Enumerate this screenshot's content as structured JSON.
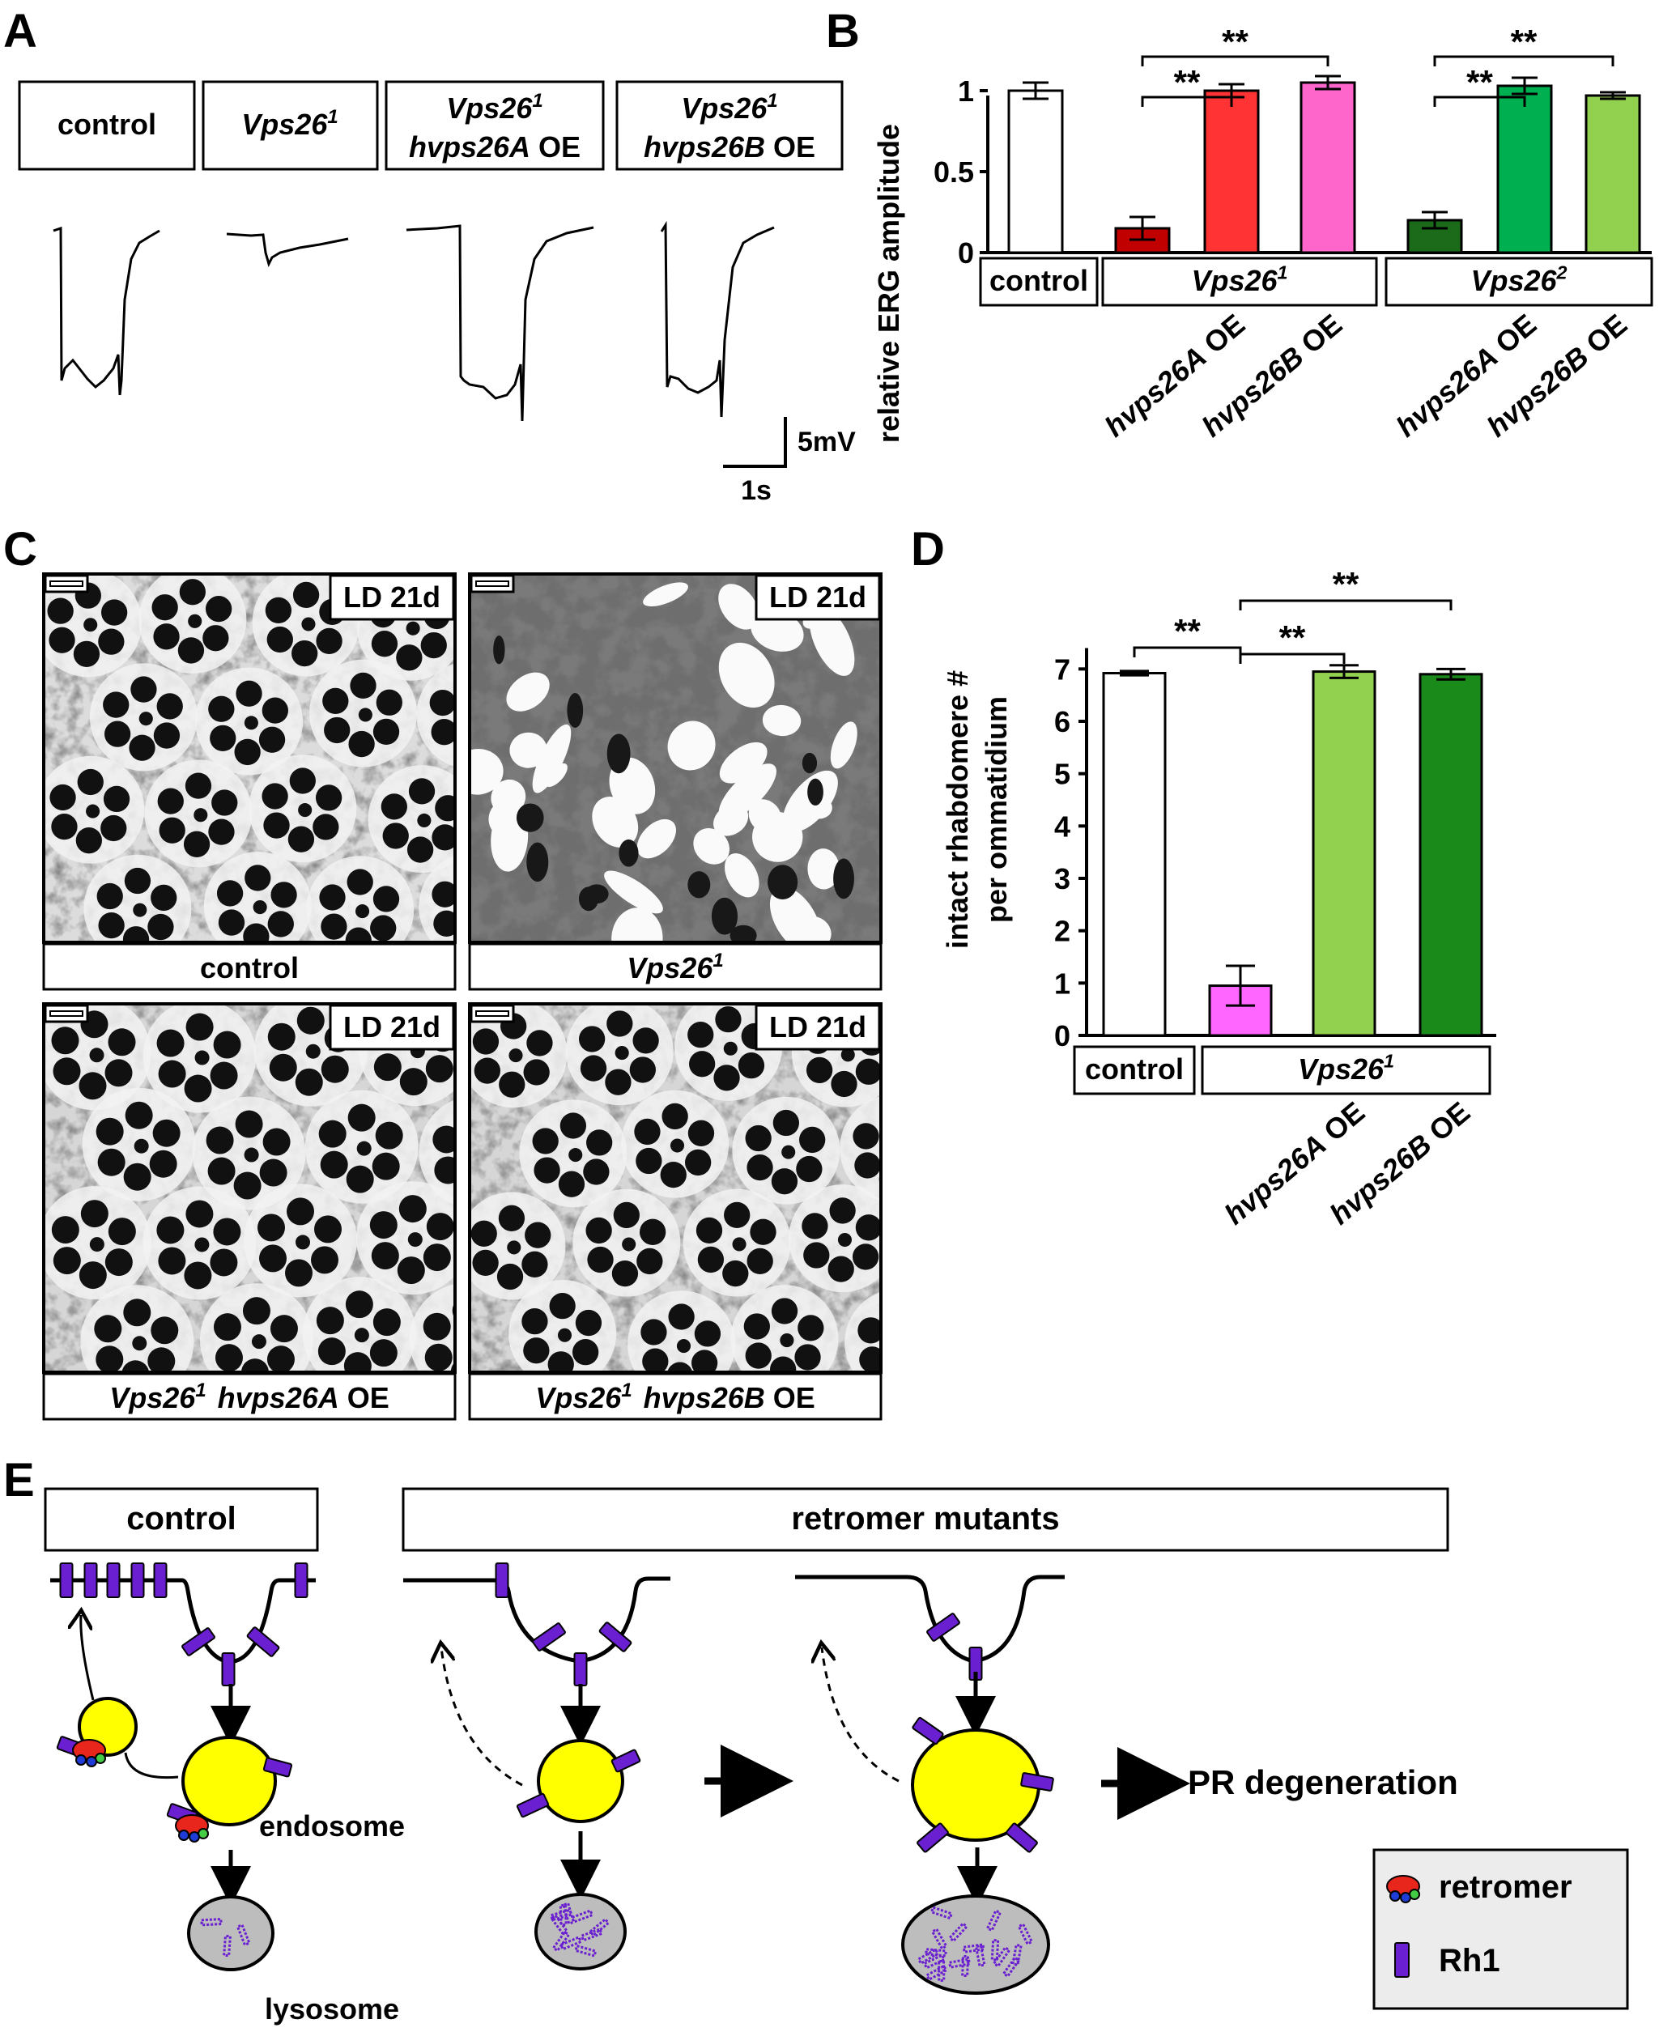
{
  "panels": {
    "A": "A",
    "B": "B",
    "C": "C",
    "D": "D",
    "E": "E"
  },
  "panel_a": {
    "conditions": [
      {
        "name": "control"
      },
      {
        "name": "Vps26",
        "sup": "1"
      },
      {
        "name": "Vps26",
        "sup": "1",
        "line2_gene": "hvps26A",
        "line2_suffix": " OE"
      },
      {
        "name": "Vps26",
        "sup": "1",
        "line2_gene": "hvps26B",
        "line2_suffix": " OE"
      }
    ],
    "scale_voltage": "5mV",
    "scale_time": "1s"
  },
  "chart_data": [
    {
      "type": "bar",
      "panel": "B",
      "ylabel": "relative ERG amplitude",
      "ylim": [
        0,
        1.1
      ],
      "yticks": [
        "0",
        "0.5",
        "1"
      ],
      "categories": [
        "control",
        "Vps26¹",
        "Vps26¹ hvps26A OE",
        "Vps26¹ hvps26B OE",
        "Vps26²",
        "Vps26² hvps26A OE",
        "Vps26² hvps26B OE"
      ],
      "values": [
        1.0,
        0.15,
        1.0,
        1.05,
        0.2,
        1.03,
        0.97
      ],
      "errors": [
        0.05,
        0.07,
        0.04,
        0.04,
        0.05,
        0.05,
        0.02
      ],
      "colors": [
        "#ffffff",
        "#c00000",
        "#ff3333",
        "#ff66cc",
        "#1b6b1b",
        "#00b050",
        "#92d050"
      ],
      "group_labels": [
        {
          "text": "control"
        },
        {
          "text": "Vps26",
          "sup": "1"
        },
        {
          "text": "Vps26",
          "sup": "2"
        }
      ],
      "tick_labels": [
        {
          "gene": "hvps26A",
          "suffix": " OE"
        },
        {
          "gene": "hvps26B",
          "suffix": " OE"
        },
        {
          "gene": "hvps26A",
          "suffix": " OE"
        },
        {
          "gene": "hvps26B",
          "suffix": " OE"
        }
      ],
      "significance": [
        {
          "label": "**",
          "from": 1,
          "to": 2
        },
        {
          "label": "**",
          "from": 1,
          "to": 3
        },
        {
          "label": "**",
          "from": 4,
          "to": 5
        },
        {
          "label": "**",
          "from": 4,
          "to": 6
        }
      ]
    },
    {
      "type": "bar",
      "panel": "D",
      "ylabel_line1": "intact rhabdomere #",
      "ylabel_line2": "per ommatidium",
      "ylim": [
        0,
        7.5
      ],
      "yticks": [
        "0",
        "1",
        "2",
        "3",
        "4",
        "5",
        "6",
        "7"
      ],
      "categories": [
        "control",
        "Vps26¹",
        "Vps26¹ hvps26A OE",
        "Vps26¹ hvps26B OE"
      ],
      "values": [
        6.92,
        0.95,
        6.95,
        6.9
      ],
      "errors": [
        0.04,
        0.38,
        0.12,
        0.1
      ],
      "colors": [
        "#ffffff",
        "#ff66ff",
        "#92d050",
        "#1a8a1a"
      ],
      "group_labels": [
        {
          "text": "control"
        },
        {
          "text": "Vps26",
          "sup": "1"
        }
      ],
      "tick_labels": [
        {
          "gene": "hvps26A",
          "suffix": " OE"
        },
        {
          "gene": "hvps26B",
          "suffix": " OE"
        }
      ],
      "significance": [
        {
          "label": "**",
          "from": 0,
          "to": 1
        },
        {
          "label": "**",
          "from": 1,
          "to": 2
        },
        {
          "label": "**",
          "from": 1,
          "to": 3
        }
      ]
    }
  ],
  "panel_c": {
    "badge": "LD 21d",
    "captions": [
      {
        "gene": "control"
      },
      {
        "gene": "Vps26",
        "sup": "1"
      },
      {
        "gene": "Vps26",
        "sup": "1",
        "gene2": "hvps26A",
        "suffix": " OE"
      },
      {
        "gene": "Vps26",
        "sup": "1",
        "gene2": "hvps26B",
        "suffix": " OE"
      }
    ]
  },
  "panel_e": {
    "control_label": "control",
    "mutants_label": "retromer mutants",
    "endosome_label": "endosome",
    "lysosome_label": "lysosome",
    "outcome_label": "PR degeneration",
    "legend": {
      "retromer": "retromer",
      "rh1": "Rh1"
    },
    "colors": {
      "rh1": "#6a1fd0",
      "endosome": "#ffff00",
      "lysosome": "#bdbdbd",
      "retromer_red": "#e8261c",
      "retromer_green": "#44cc44",
      "retromer_blue": "#1f3cd6"
    }
  }
}
